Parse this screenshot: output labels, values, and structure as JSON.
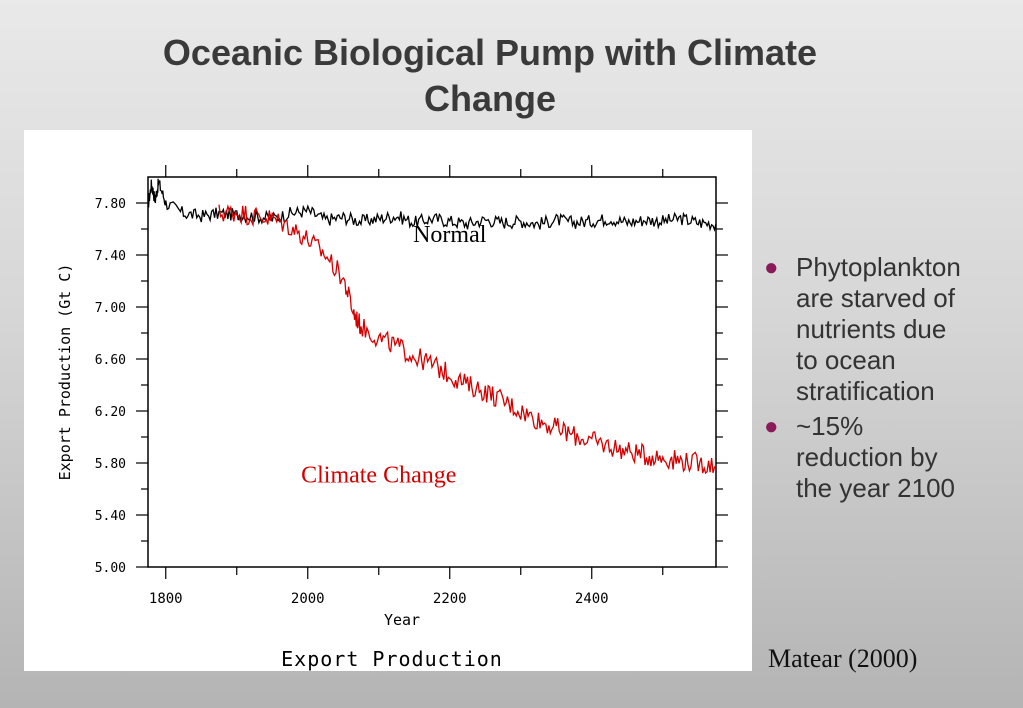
{
  "slide": {
    "title_line1": "Oceanic Biological Pump with Climate",
    "title_line2": "Change",
    "bullets": [
      {
        "lines": [
          "Phytoplankton",
          "are starved of",
          "nutrients due",
          "to ocean",
          "stratification"
        ]
      },
      {
        "lines": [
          "~15%",
          "reduction by",
          "the year 2100"
        ]
      }
    ],
    "citation": "Matear (2000)"
  },
  "chart_data": {
    "type": "line",
    "title": "Export Production",
    "xlabel": "Year",
    "ylabel": "Export Production (Gt C)",
    "xlim": [
      1775,
      2575
    ],
    "ylim": [
      5.0,
      8.0
    ],
    "xticks": [
      1800,
      2000,
      2200,
      2400
    ],
    "xtick_labels": [
      "1800",
      "2000",
      "2200",
      "2400"
    ],
    "yticks": [
      5.0,
      5.4,
      5.8,
      6.2,
      6.6,
      7.0,
      7.4,
      7.8
    ],
    "ytick_labels": [
      "5.00",
      "5.40",
      "5.80",
      "6.20",
      "6.60",
      "7.00",
      "7.40",
      "7.80"
    ],
    "grid": false,
    "annotations": [
      {
        "text": "Normal",
        "x": 2200,
        "y": 7.5,
        "color": "#000000"
      },
      {
        "text": "Climate Change",
        "x": 2100,
        "y": 5.65,
        "color": "#d40000"
      }
    ],
    "series": [
      {
        "name": "Normal",
        "color": "#000000",
        "x": [
          1775,
          1780,
          1785,
          1790,
          1800,
          1825,
          1850,
          1875,
          1900,
          1925,
          1950,
          1975,
          2000,
          2025,
          2050,
          2075,
          2100,
          2125,
          2150,
          2175,
          2200,
          2225,
          2250,
          2275,
          2300,
          2325,
          2350,
          2375,
          2400,
          2425,
          2450,
          2475,
          2500,
          2525,
          2550,
          2575
        ],
        "y": [
          7.78,
          7.95,
          7.82,
          7.96,
          7.8,
          7.72,
          7.7,
          7.72,
          7.71,
          7.7,
          7.68,
          7.72,
          7.74,
          7.67,
          7.69,
          7.66,
          7.68,
          7.7,
          7.65,
          7.68,
          7.66,
          7.64,
          7.67,
          7.65,
          7.66,
          7.64,
          7.67,
          7.65,
          7.66,
          7.68,
          7.65,
          7.67,
          7.66,
          7.68,
          7.65,
          7.64
        ]
      },
      {
        "name": "Climate Change",
        "color": "#d40000",
        "x": [
          1875,
          1900,
          1925,
          1950,
          1975,
          2000,
          2025,
          2050,
          2065,
          2075,
          2100,
          2125,
          2150,
          2175,
          2200,
          2225,
          2250,
          2275,
          2300,
          2325,
          2350,
          2375,
          2400,
          2425,
          2450,
          2475,
          2500,
          2525,
          2550,
          2575
        ],
        "y": [
          7.72,
          7.73,
          7.7,
          7.68,
          7.62,
          7.52,
          7.4,
          7.22,
          6.95,
          6.85,
          6.76,
          6.7,
          6.62,
          6.56,
          6.48,
          6.4,
          6.35,
          6.28,
          6.2,
          6.13,
          6.07,
          6.01,
          5.97,
          5.93,
          5.89,
          5.86,
          5.84,
          5.82,
          5.8,
          5.78
        ]
      }
    ]
  }
}
